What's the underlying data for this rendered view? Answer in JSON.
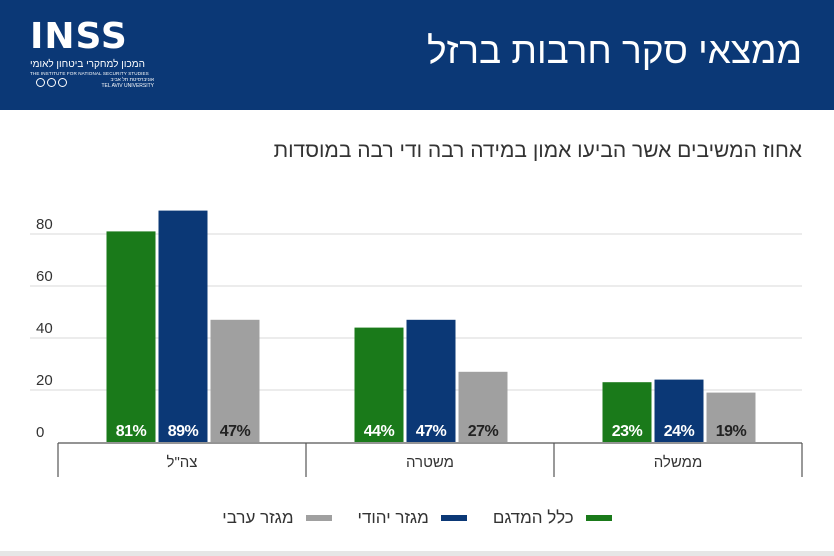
{
  "header": {
    "title": "ממצאי סקר חרבות ברזל",
    "logo": {
      "wordmark": "INSS",
      "hebrew_name": "המכון למחקרי ביטחון לאומי",
      "english_name": "THE INSTITUTE FOR NATIONAL SECURITY STUDIES",
      "university_he": "אוניברסיטת תל אביב",
      "university_en": "TEL AVIV UNIVERSITY"
    },
    "background_color": "#0b3876"
  },
  "chart_data": {
    "type": "bar",
    "title": "אחוז המשיבים אשר הביעו אמון במידה רבה ודי רבה במוסדות",
    "categories": [
      "צה\"ל",
      "משטרה",
      "ממשלה"
    ],
    "series": [
      {
        "name": "כלל המדגם",
        "color": "#1a7a1a",
        "values": [
          81,
          44,
          23
        ],
        "labels": [
          "81%",
          "44%",
          "23%"
        ]
      },
      {
        "name": "מגזר יהודי",
        "color": "#0b3876",
        "values": [
          89,
          47,
          24
        ],
        "labels": [
          "89%",
          "47%",
          "24%"
        ]
      },
      {
        "name": "מגזר ערבי",
        "color": "#a0a0a0",
        "values": [
          47,
          27,
          19
        ],
        "labels": [
          "47%",
          "27%",
          "19%"
        ]
      }
    ],
    "yticks": [
      0,
      20,
      40,
      60,
      80
    ],
    "ylim": [
      0,
      100
    ],
    "grid": true,
    "legend": "bottom"
  }
}
